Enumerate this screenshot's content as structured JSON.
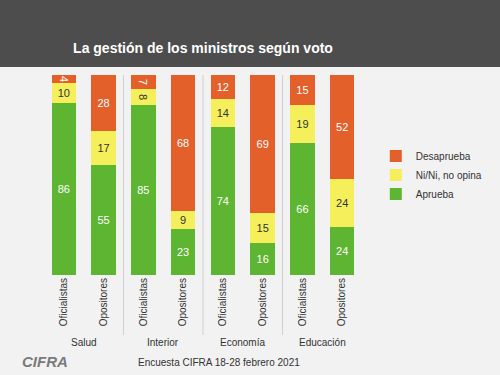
{
  "chart_data": {
    "type": "bar",
    "title": "La gestión de los ministros según voto",
    "categories": [
      "Oficialistas",
      "Opositores",
      "Oficialistas",
      "Opositores",
      "Oficialistas",
      "Opositores",
      "Oficialistas",
      "Opositores"
    ],
    "groups": [
      "Salud",
      "Interior",
      "Economía",
      "Educación"
    ],
    "series": [
      {
        "name": "Aprueba",
        "color": "#5db531",
        "values": [
          86,
          55,
          85,
          23,
          74,
          16,
          66,
          24
        ]
      },
      {
        "name": "Ni/Ni, no opina",
        "color": "#f5ef5b",
        "values": [
          10,
          17,
          8,
          9,
          14,
          15,
          19,
          24
        ]
      },
      {
        "name": "Desaprueba",
        "color": "#e3602b",
        "values": [
          4,
          28,
          7,
          68,
          12,
          69,
          15,
          52
        ]
      }
    ],
    "stacked": true,
    "data_labels": true,
    "ylim": [
      0,
      100
    ],
    "tick_labels": "x",
    "legend": "right",
    "grid": false,
    "source": "Encuesta CIFRA 18-28 febrero 2021",
    "logo": "CIFRA"
  }
}
